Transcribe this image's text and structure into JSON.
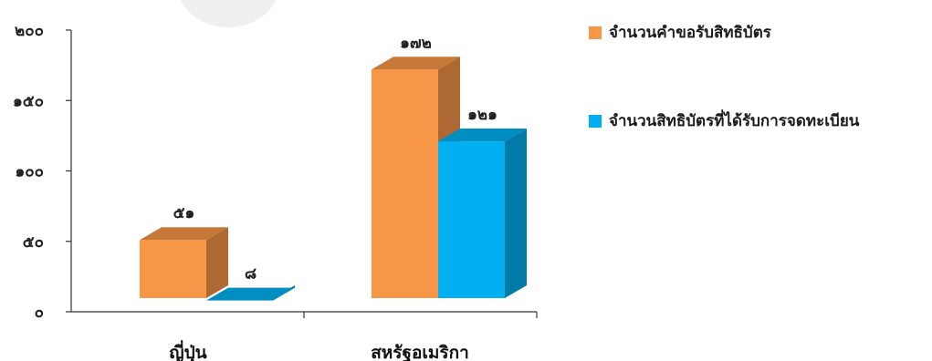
{
  "chart_data": {
    "type": "bar",
    "style": "3d-clustered-column",
    "categories": [
      "ญี่ปุ่น",
      "สหรัฐอเมริกา"
    ],
    "series": [
      {
        "name": "จำนวนคำขอรับสิทธิบัตร",
        "values": [
          51,
          172
        ],
        "labels": [
          "๕๑",
          "๑๗๒"
        ],
        "color": "#F79646"
      },
      {
        "name": "จำนวนสิทธิบัตรที่ได้รับการจดทะเบียน",
        "values": [
          8,
          121
        ],
        "labels": [
          "๘",
          "๑๒๑"
        ],
        "color": "#00B0F0"
      }
    ],
    "yticks": [
      0,
      50,
      100,
      150,
      200
    ],
    "ytick_labels": [
      "๐",
      "๕๐",
      "๑๐๐",
      "๑๕๐",
      "๒๐๐"
    ],
    "ylim": [
      0,
      200
    ],
    "grid": false,
    "legend_position": "right"
  }
}
